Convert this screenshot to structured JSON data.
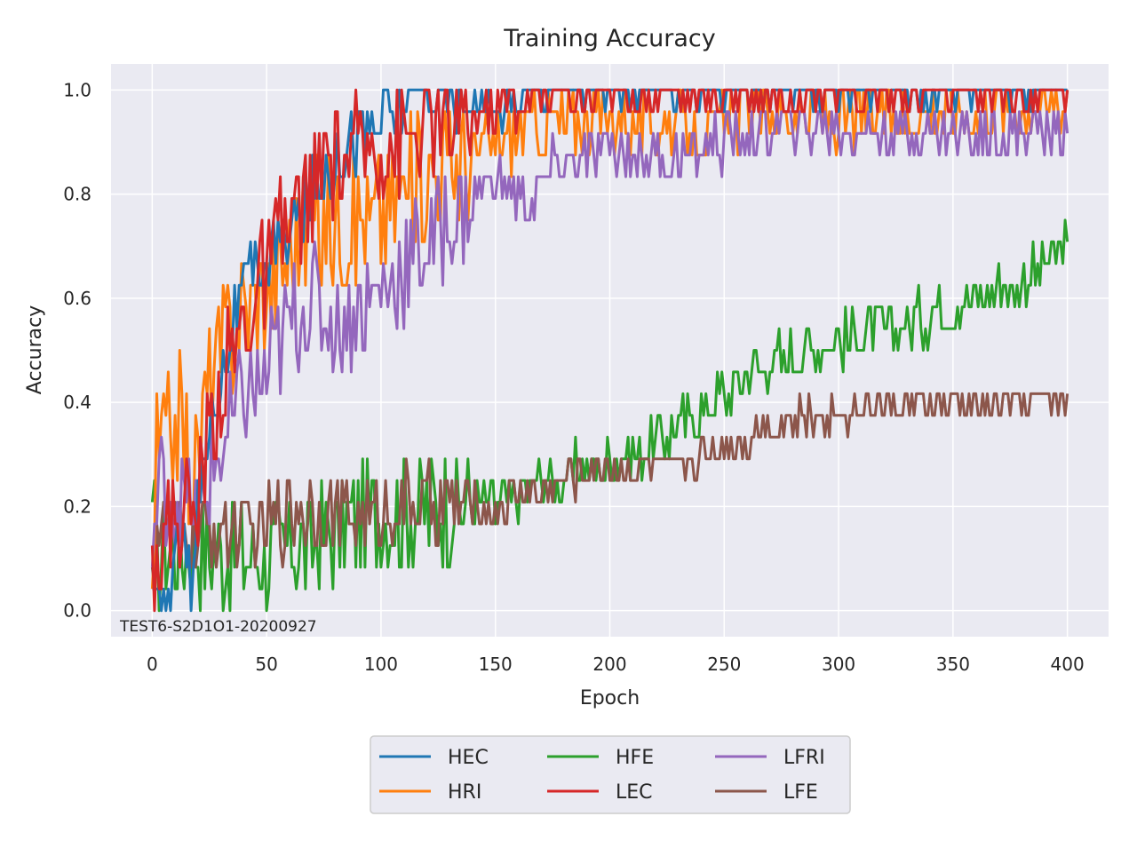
{
  "chart_data": {
    "type": "line",
    "title": "Training Accuracy",
    "xlabel": "Epoch",
    "ylabel": "Accuracy",
    "annotation": "TEST6-S2D1O1-20200927",
    "xlim": [
      -18,
      418
    ],
    "ylim": [
      -0.05,
      1.05
    ],
    "xticks": [
      0,
      50,
      100,
      150,
      200,
      250,
      300,
      350,
      400
    ],
    "yticks": [
      0.0,
      0.2,
      0.4,
      0.6,
      0.8,
      1.0
    ],
    "ytick_labels": [
      "0.0",
      "0.2",
      "0.4",
      "0.6",
      "0.8",
      "1.0"
    ],
    "grid": true,
    "legend": {
      "placement": "bottom-center, below axes",
      "columns": 3
    },
    "series": [
      {
        "name": "HEC",
        "color": "#1f77b4",
        "noise": 0.03,
        "points": [
          [
            0,
            0.04
          ],
          [
            2,
            0
          ],
          [
            6,
            0
          ],
          [
            10,
            0.1
          ],
          [
            14,
            0.2
          ],
          [
            17,
            0
          ],
          [
            22,
            0.3
          ],
          [
            30,
            0.45
          ],
          [
            38,
            0.6
          ],
          [
            45,
            0.65
          ],
          [
            55,
            0.7
          ],
          [
            65,
            0.75
          ],
          [
            75,
            0.85
          ],
          [
            85,
            0.9
          ],
          [
            95,
            0.93
          ],
          [
            105,
            0.96
          ],
          [
            115,
            1.0
          ],
          [
            130,
            1.0
          ],
          [
            150,
            0.96
          ],
          [
            170,
            1.0
          ],
          [
            250,
            1.0
          ],
          [
            400,
            1.0
          ]
        ]
      },
      {
        "name": "HRI",
        "color": "#ff7f0e",
        "noise": 0.06,
        "points": [
          [
            0,
            0.04
          ],
          [
            2,
            0.29
          ],
          [
            8,
            0.35
          ],
          [
            12,
            0.38
          ],
          [
            18,
            0.25
          ],
          [
            25,
            0.45
          ],
          [
            35,
            0.55
          ],
          [
            45,
            0.6
          ],
          [
            55,
            0.65
          ],
          [
            65,
            0.72
          ],
          [
            80,
            0.75
          ],
          [
            95,
            0.75
          ],
          [
            110,
            0.8
          ],
          [
            125,
            0.85
          ],
          [
            140,
            0.88
          ],
          [
            160,
            0.92
          ],
          [
            180,
            0.94
          ],
          [
            200,
            0.95
          ],
          [
            240,
            0.92
          ],
          [
            260,
            0.96
          ],
          [
            300,
            0.95
          ],
          [
            350,
            0.96
          ],
          [
            400,
            0.98
          ]
        ]
      },
      {
        "name": "HFE",
        "color": "#2ca02c",
        "noise": 0.05,
        "points": [
          [
            0,
            0.21
          ],
          [
            2,
            0.08
          ],
          [
            8,
            0.12
          ],
          [
            20,
            0.12
          ],
          [
            35,
            0.1
          ],
          [
            50,
            0.1
          ],
          [
            65,
            0.12
          ],
          [
            80,
            0.15
          ],
          [
            95,
            0.18
          ],
          [
            110,
            0.18
          ],
          [
            130,
            0.2
          ],
          [
            150,
            0.2
          ],
          [
            170,
            0.25
          ],
          [
            190,
            0.27
          ],
          [
            210,
            0.3
          ],
          [
            230,
            0.35
          ],
          [
            250,
            0.42
          ],
          [
            270,
            0.48
          ],
          [
            300,
            0.52
          ],
          [
            330,
            0.55
          ],
          [
            360,
            0.6
          ],
          [
            380,
            0.63
          ],
          [
            400,
            0.7
          ]
        ]
      },
      {
        "name": "LEC",
        "color": "#d62728",
        "noise": 0.05,
        "points": [
          [
            0,
            0.12
          ],
          [
            5,
            0.12
          ],
          [
            10,
            0.2
          ],
          [
            18,
            0.18
          ],
          [
            25,
            0.35
          ],
          [
            35,
            0.5
          ],
          [
            45,
            0.6
          ],
          [
            55,
            0.7
          ],
          [
            65,
            0.78
          ],
          [
            75,
            0.85
          ],
          [
            90,
            0.88
          ],
          [
            105,
            0.9
          ],
          [
            120,
            0.92
          ],
          [
            140,
            0.95
          ],
          [
            160,
            0.98
          ],
          [
            180,
            1.0
          ],
          [
            250,
            1.0
          ],
          [
            400,
            1.0
          ]
        ]
      },
      {
        "name": "LFRI",
        "color": "#9467bd",
        "noise": 0.05,
        "points": [
          [
            0,
            0.08
          ],
          [
            3,
            0.25
          ],
          [
            10,
            0.22
          ],
          [
            20,
            0.2
          ],
          [
            30,
            0.3
          ],
          [
            40,
            0.4
          ],
          [
            50,
            0.45
          ],
          [
            60,
            0.55
          ],
          [
            70,
            0.6
          ],
          [
            80,
            0.55
          ],
          [
            90,
            0.58
          ],
          [
            100,
            0.62
          ],
          [
            115,
            0.68
          ],
          [
            130,
            0.75
          ],
          [
            150,
            0.82
          ],
          [
            165,
            0.78
          ],
          [
            175,
            0.85
          ],
          [
            200,
            0.88
          ],
          [
            230,
            0.87
          ],
          [
            250,
            0.9
          ],
          [
            280,
            0.93
          ],
          [
            320,
            0.92
          ],
          [
            360,
            0.92
          ],
          [
            400,
            0.92
          ]
        ]
      },
      {
        "name": "LFE",
        "color": "#8c564b",
        "noise": 0.035,
        "points": [
          [
            0,
            0.08
          ],
          [
            2,
            0.16
          ],
          [
            10,
            0.16
          ],
          [
            20,
            0.15
          ],
          [
            35,
            0.15
          ],
          [
            50,
            0.16
          ],
          [
            65,
            0.2
          ],
          [
            80,
            0.18
          ],
          [
            95,
            0.18
          ],
          [
            110,
            0.2
          ],
          [
            130,
            0.2
          ],
          [
            150,
            0.2
          ],
          [
            170,
            0.23
          ],
          [
            190,
            0.27
          ],
          [
            210,
            0.27
          ],
          [
            230,
            0.28
          ],
          [
            250,
            0.32
          ],
          [
            270,
            0.35
          ],
          [
            300,
            0.38
          ],
          [
            330,
            0.4
          ],
          [
            360,
            0.39
          ],
          [
            380,
            0.4
          ],
          [
            400,
            0.41
          ]
        ]
      }
    ]
  }
}
